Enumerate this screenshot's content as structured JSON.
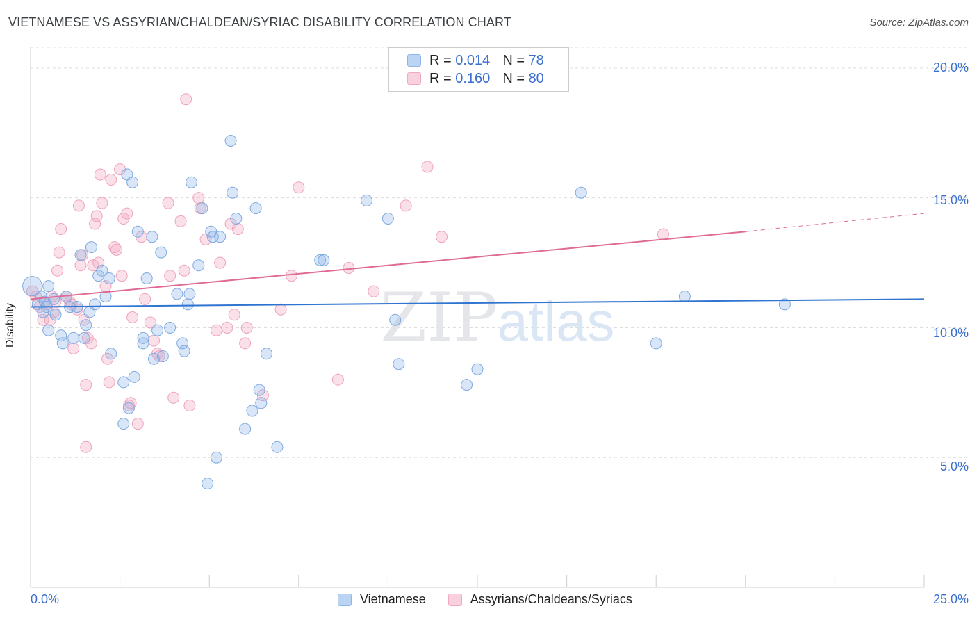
{
  "header": {
    "title": "VIETNAMESE VS ASSYRIAN/CHALDEAN/SYRIAC DISABILITY CORRELATION CHART",
    "source": "Source: ZipAtlas.com"
  },
  "colors": {
    "blue": "#8fb6e8",
    "blue_line": "#2f74d0",
    "pink": "#f2a8c0",
    "pink_line": "#e06a96",
    "tick_label": "#3a6fd0"
  },
  "legend_top": {
    "rows": [
      {
        "r_label": "R =",
        "r_value": "0.014",
        "n_label": "N =",
        "n_value": "78"
      },
      {
        "r_label": "R =",
        "r_value": "0.160",
        "n_label": "N =",
        "n_value": "80"
      }
    ]
  },
  "legend_bottom": {
    "items": [
      "Vietnamese",
      "Assyrians/Chaldeans/Syriacs"
    ]
  },
  "watermark": {
    "zip": "ZIP",
    "atlas": "atlas"
  },
  "chart_data": {
    "type": "scatter",
    "title": "VIETNAMESE VS ASSYRIAN/CHALDEAN/SYRIAC DISABILITY CORRELATION CHART",
    "xlabel": "",
    "ylabel": "Disability",
    "xlim": [
      0,
      25
    ],
    "ylim": [
      0,
      20.8
    ],
    "x_tick_labels": [
      "0.0%",
      "25.0%"
    ],
    "y_ticks": [
      5,
      10,
      15,
      20
    ],
    "y_tick_labels": [
      "5.0%",
      "10.0%",
      "15.0%",
      "20.0%"
    ],
    "grid": "horizontal dashed",
    "legend_position": "top-center",
    "series": [
      {
        "name": "Vietnamese",
        "color": "#8fb6e8",
        "trend": {
          "x": [
            0,
            25
          ],
          "y": [
            10.8,
            11.1
          ]
        },
        "points": [
          [
            0.05,
            11.6
          ],
          [
            0.2,
            10.9
          ],
          [
            0.3,
            11.2
          ],
          [
            0.35,
            10.6
          ],
          [
            0.4,
            11.0
          ],
          [
            0.45,
            10.8
          ],
          [
            0.5,
            9.9
          ],
          [
            0.5,
            11.6
          ],
          [
            0.65,
            11.1
          ],
          [
            0.7,
            10.5
          ],
          [
            0.85,
            9.7
          ],
          [
            0.9,
            9.4
          ],
          [
            1.0,
            11.2
          ],
          [
            1.1,
            10.8
          ],
          [
            1.2,
            9.6
          ],
          [
            1.3,
            10.8
          ],
          [
            1.4,
            12.8
          ],
          [
            1.5,
            9.6
          ],
          [
            1.55,
            10.1
          ],
          [
            1.65,
            10.6
          ],
          [
            1.7,
            13.1
          ],
          [
            1.8,
            10.9
          ],
          [
            1.9,
            12.0
          ],
          [
            2.0,
            12.2
          ],
          [
            2.1,
            11.2
          ],
          [
            2.2,
            11.9
          ],
          [
            2.25,
            9.0
          ],
          [
            2.6,
            6.3
          ],
          [
            2.6,
            7.9
          ],
          [
            2.7,
            15.9
          ],
          [
            2.75,
            6.9
          ],
          [
            2.85,
            15.6
          ],
          [
            2.9,
            8.1
          ],
          [
            3.0,
            13.7
          ],
          [
            3.15,
            9.6
          ],
          [
            3.15,
            9.4
          ],
          [
            3.25,
            11.9
          ],
          [
            3.4,
            13.5
          ],
          [
            3.45,
            8.8
          ],
          [
            3.55,
            9.9
          ],
          [
            3.65,
            12.9
          ],
          [
            3.7,
            8.9
          ],
          [
            3.9,
            10.0
          ],
          [
            4.1,
            11.3
          ],
          [
            4.25,
            9.4
          ],
          [
            4.3,
            9.1
          ],
          [
            4.4,
            10.9
          ],
          [
            4.45,
            11.3
          ],
          [
            4.5,
            15.6
          ],
          [
            4.7,
            12.4
          ],
          [
            4.8,
            14.6
          ],
          [
            4.95,
            4.0
          ],
          [
            5.05,
            13.7
          ],
          [
            5.1,
            13.5
          ],
          [
            5.2,
            5.0
          ],
          [
            5.3,
            13.5
          ],
          [
            5.6,
            17.2
          ],
          [
            5.65,
            15.2
          ],
          [
            5.75,
            14.2
          ],
          [
            6.0,
            6.1
          ],
          [
            6.2,
            6.8
          ],
          [
            6.3,
            14.6
          ],
          [
            6.4,
            7.6
          ],
          [
            6.45,
            7.1
          ],
          [
            6.6,
            9.0
          ],
          [
            6.9,
            5.4
          ],
          [
            8.1,
            12.6
          ],
          [
            8.2,
            12.6
          ],
          [
            9.4,
            14.9
          ],
          [
            10.0,
            14.2
          ],
          [
            10.2,
            10.3
          ],
          [
            10.3,
            8.6
          ],
          [
            12.2,
            7.8
          ],
          [
            12.5,
            8.4
          ],
          [
            15.4,
            15.2
          ],
          [
            17.5,
            9.4
          ],
          [
            18.3,
            11.2
          ],
          [
            21.1,
            10.9
          ]
        ]
      },
      {
        "name": "Assyrians/Chaldeans/Syriacs",
        "color": "#f2a8c0",
        "trend": {
          "x": [
            0,
            20
          ],
          "y": [
            11.1,
            13.7
          ]
        },
        "trend_dashed": {
          "x": [
            20,
            25
          ],
          "y": [
            13.7,
            14.4
          ]
        },
        "points": [
          [
            0.05,
            11.4
          ],
          [
            0.15,
            11.2
          ],
          [
            0.25,
            10.8
          ],
          [
            0.35,
            10.3
          ],
          [
            0.45,
            10.9
          ],
          [
            0.55,
            10.3
          ],
          [
            0.6,
            11.2
          ],
          [
            0.65,
            10.6
          ],
          [
            0.7,
            11.0
          ],
          [
            0.75,
            12.2
          ],
          [
            0.8,
            12.9
          ],
          [
            0.85,
            13.8
          ],
          [
            1.0,
            11.2
          ],
          [
            1.1,
            11.0
          ],
          [
            1.15,
            10.9
          ],
          [
            1.2,
            9.2
          ],
          [
            1.3,
            10.7
          ],
          [
            1.35,
            14.7
          ],
          [
            1.4,
            12.4
          ],
          [
            1.45,
            12.8
          ],
          [
            1.5,
            10.3
          ],
          [
            1.55,
            7.8
          ],
          [
            1.6,
            9.6
          ],
          [
            1.7,
            9.4
          ],
          [
            1.75,
            12.4
          ],
          [
            1.8,
            14.0
          ],
          [
            1.85,
            14.3
          ],
          [
            1.9,
            12.5
          ],
          [
            1.95,
            15.9
          ],
          [
            2.0,
            14.8
          ],
          [
            2.1,
            11.6
          ],
          [
            2.15,
            8.8
          ],
          [
            2.2,
            7.9
          ],
          [
            2.25,
            15.7
          ],
          [
            2.35,
            13.1
          ],
          [
            2.4,
            13.0
          ],
          [
            2.5,
            16.1
          ],
          [
            2.55,
            12.0
          ],
          [
            2.6,
            14.2
          ],
          [
            2.7,
            14.4
          ],
          [
            2.75,
            7.0
          ],
          [
            2.8,
            7.1
          ],
          [
            2.85,
            10.4
          ],
          [
            3.0,
            6.3
          ],
          [
            3.1,
            13.5
          ],
          [
            3.2,
            11.1
          ],
          [
            3.35,
            10.2
          ],
          [
            3.45,
            9.5
          ],
          [
            3.55,
            9.0
          ],
          [
            3.6,
            8.9
          ],
          [
            3.85,
            14.8
          ],
          [
            3.9,
            12.0
          ],
          [
            4.0,
            7.3
          ],
          [
            4.2,
            14.1
          ],
          [
            4.3,
            12.2
          ],
          [
            4.35,
            18.8
          ],
          [
            4.45,
            7.0
          ],
          [
            4.7,
            15.0
          ],
          [
            4.75,
            14.6
          ],
          [
            4.9,
            13.4
          ],
          [
            5.2,
            9.9
          ],
          [
            5.3,
            12.5
          ],
          [
            5.5,
            10.0
          ],
          [
            5.6,
            14.0
          ],
          [
            5.7,
            10.5
          ],
          [
            5.8,
            13.8
          ],
          [
            6.0,
            9.4
          ],
          [
            6.05,
            10.0
          ],
          [
            6.5,
            7.4
          ],
          [
            7.0,
            10.7
          ],
          [
            7.3,
            12.0
          ],
          [
            7.5,
            15.4
          ],
          [
            8.6,
            8.0
          ],
          [
            8.9,
            12.3
          ],
          [
            9.6,
            11.4
          ],
          [
            10.5,
            14.7
          ],
          [
            11.1,
            16.2
          ],
          [
            11.5,
            13.5
          ],
          [
            17.7,
            13.6
          ],
          [
            1.55,
            5.4
          ]
        ]
      }
    ]
  }
}
